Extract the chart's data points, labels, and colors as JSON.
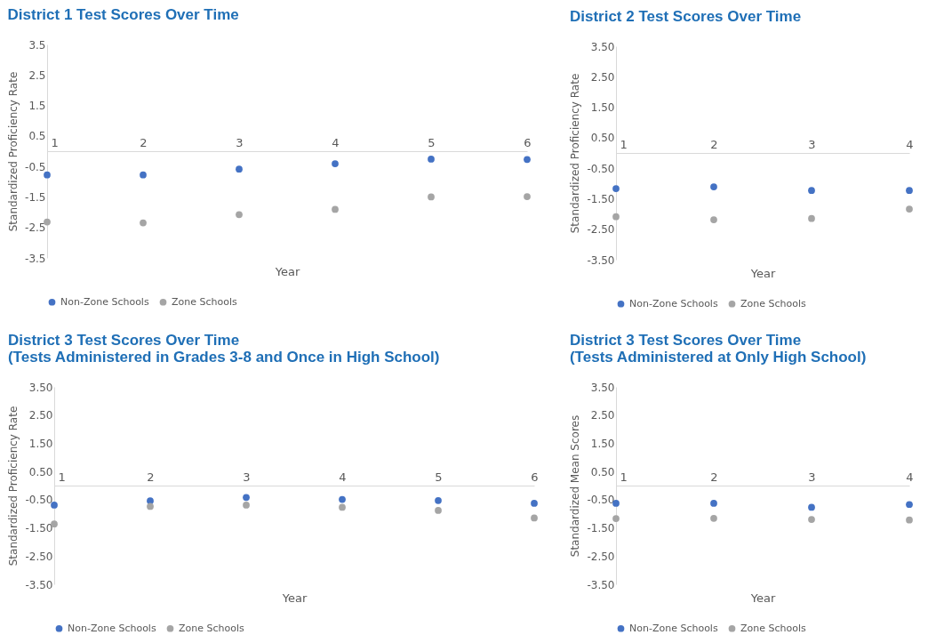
{
  "chart_data": [
    {
      "type": "scatter",
      "title": "District 1 Test Scores Over Time",
      "xlabel": "Year",
      "ylabel": "Standardized Proficiency Rate",
      "categories": [
        "1",
        "2",
        "3",
        "4",
        "5",
        "6"
      ],
      "ylim": [
        -3.5,
        3.5
      ],
      "yticks": [
        -3.5,
        -2.5,
        -1.5,
        -0.5,
        0.5,
        1.5,
        2.5,
        3.5
      ],
      "legend": "bottom",
      "marker": "circle",
      "series": [
        {
          "name": "Non-Zone Schools",
          "color": "#4472c4",
          "values": [
            -0.78,
            -0.78,
            -0.59,
            -0.41,
            -0.26,
            -0.27
          ]
        },
        {
          "name": "Zone Schools",
          "color": "#a5a5a5",
          "values": [
            -2.32,
            -2.35,
            -2.08,
            -1.91,
            -1.5,
            -1.49
          ]
        }
      ]
    },
    {
      "type": "scatter",
      "title": "District 2 Test Scores Over Time",
      "xlabel": "Year",
      "ylabel": "Standardized Proficiency Rate",
      "categories": [
        "1",
        "2",
        "3",
        "4"
      ],
      "ylim": [
        -3.5,
        3.5
      ],
      "yticks": [
        {
          "value": -3.5,
          "label": "-3.50"
        },
        {
          "value": -2.5,
          "label": "-2.50"
        },
        {
          "value": -1.5,
          "label": "-1.50"
        },
        {
          "value": -0.5,
          "label": "-0.50"
        },
        {
          "value": 0.5,
          "label": "0.50"
        },
        {
          "value": 1.5,
          "label": "1.50"
        },
        {
          "value": 2.5,
          "label": "2.50"
        },
        {
          "value": 3.5,
          "label": "3.50"
        }
      ],
      "legend": "bottom",
      "marker": "circle",
      "series": [
        {
          "name": "Non-Zone Schools",
          "color": "#4472c4",
          "values": [
            -1.17,
            -1.11,
            -1.23,
            -1.23
          ]
        },
        {
          "name": "Zone Schools",
          "color": "#a5a5a5",
          "values": [
            -2.09,
            -2.19,
            -2.15,
            -1.84
          ]
        }
      ]
    },
    {
      "type": "scatter",
      "title": "District 3 Test Scores Over Time",
      "subtitle": "(Tests Administered in Grades 3-8 and Once in High School)",
      "xlabel": "Year",
      "ylabel": "Standardized Proficiency Rate",
      "categories": [
        "1",
        "2",
        "3",
        "4",
        "5",
        "6"
      ],
      "ylim": [
        -3.5,
        3.5
      ],
      "yticks": [
        {
          "value": -3.5,
          "label": "-3.50"
        },
        {
          "value": -2.5,
          "label": "-2.50"
        },
        {
          "value": -1.5,
          "label": "-1.50"
        },
        {
          "value": -0.5,
          "label": "-0.50"
        },
        {
          "value": 0.5,
          "label": "0.50"
        },
        {
          "value": 1.5,
          "label": "1.50"
        },
        {
          "value": 2.5,
          "label": "2.50"
        },
        {
          "value": 3.5,
          "label": "3.50"
        }
      ],
      "legend": "bottom",
      "marker": "circle",
      "series": [
        {
          "name": "Non-Zone Schools",
          "color": "#4472c4",
          "values": [
            -0.69,
            -0.54,
            -0.42,
            -0.49,
            -0.53,
            -0.63
          ]
        },
        {
          "name": "Zone Schools",
          "color": "#a5a5a5",
          "values": [
            -1.36,
            -0.74,
            -0.69,
            -0.77,
            -0.88,
            -1.15
          ]
        }
      ]
    },
    {
      "type": "scatter",
      "title": "District 3 Test Scores Over Time",
      "subtitle": "(Tests Administered at Only High School)",
      "xlabel": "Year",
      "ylabel": "Standardized Mean Scores",
      "categories": [
        "1",
        "2",
        "3",
        "4"
      ],
      "ylim": [
        -3.5,
        3.5
      ],
      "yticks": [
        {
          "value": -3.5,
          "label": "-3.50"
        },
        {
          "value": -2.5,
          "label": "-2.50"
        },
        {
          "value": -1.5,
          "label": "-1.50"
        },
        {
          "value": -0.5,
          "label": "-0.50"
        },
        {
          "value": 0.5,
          "label": "0.50"
        },
        {
          "value": 1.5,
          "label": "1.50"
        },
        {
          "value": 2.5,
          "label": "2.50"
        },
        {
          "value": 3.5,
          "label": "3.50"
        }
      ],
      "legend": "bottom",
      "marker": "circle",
      "series": [
        {
          "name": "Non-Zone Schools",
          "color": "#4472c4",
          "values": [
            -0.63,
            -0.63,
            -0.77,
            -0.67
          ]
        },
        {
          "name": "Zone Schools",
          "color": "#a5a5a5",
          "values": [
            -1.17,
            -1.16,
            -1.2,
            -1.22
          ]
        }
      ]
    }
  ]
}
